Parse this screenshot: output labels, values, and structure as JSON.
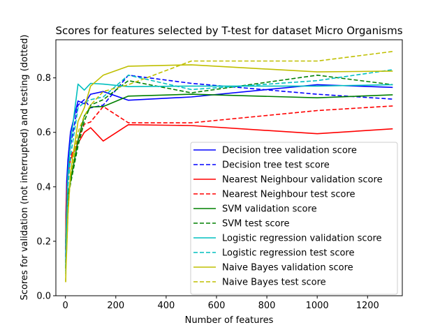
{
  "chart_data": {
    "type": "line",
    "title": "Scores for features selected by T-test for dataset Micro Organisms",
    "xlabel": "Number of features",
    "ylabel": "Scores for validation (not interrupted) and testing (dotted)",
    "xlim": [
      -38,
      1338
    ],
    "ylim": [
      0.0,
      0.94
    ],
    "xticks": [
      0,
      200,
      400,
      600,
      800,
      1000,
      1200
    ],
    "yticks": [
      0.0,
      0.2,
      0.4,
      0.6,
      0.8
    ],
    "ytick_labels": [
      "0.0",
      "0.2",
      "0.4",
      "0.6",
      "0.8"
    ],
    "grid": false,
    "legend_position": "lower-right",
    "x": [
      1,
      2,
      5,
      10,
      20,
      50,
      75,
      100,
      150,
      250,
      500,
      1000,
      1300
    ],
    "series": [
      {
        "name": "Decision tree validation score",
        "color": "#0000ff",
        "style": "solid",
        "values": [
          0.14,
          0.3,
          0.42,
          0.5,
          0.6,
          0.715,
          0.705,
          0.74,
          0.75,
          0.718,
          0.73,
          0.775,
          0.765
        ]
      },
      {
        "name": "Decision tree test score",
        "color": "#0000ff",
        "style": "dashed",
        "values": [
          0.12,
          0.27,
          0.38,
          0.47,
          0.55,
          0.7,
          0.72,
          0.69,
          0.7,
          0.81,
          0.78,
          0.74,
          0.722
        ]
      },
      {
        "name": "Nearest Neighbour validation score",
        "color": "#ff0000",
        "style": "solid",
        "values": [
          0.17,
          0.27,
          0.37,
          0.44,
          0.5,
          0.56,
          0.6,
          0.617,
          0.568,
          0.628,
          0.625,
          0.595,
          0.613
        ]
      },
      {
        "name": "Nearest Neighbour test score",
        "color": "#ff0000",
        "style": "dashed",
        "values": [
          0.17,
          0.28,
          0.38,
          0.45,
          0.51,
          0.57,
          0.63,
          0.638,
          0.695,
          0.635,
          0.635,
          0.68,
          0.697
        ]
      },
      {
        "name": "SVM validation score",
        "color": "#008000",
        "style": "solid",
        "values": [
          0.1,
          0.2,
          0.3,
          0.37,
          0.42,
          0.57,
          0.66,
          0.693,
          0.695,
          0.733,
          0.74,
          0.727,
          0.738
        ]
      },
      {
        "name": "SVM test score",
        "color": "#008000",
        "style": "dashed",
        "values": [
          0.1,
          0.19,
          0.29,
          0.36,
          0.41,
          0.55,
          0.64,
          0.7,
          0.72,
          0.79,
          0.745,
          0.81,
          0.775
        ]
      },
      {
        "name": "Logistic regression validation score",
        "color": "#00bfbf",
        "style": "solid",
        "values": [
          0.09,
          0.18,
          0.3,
          0.45,
          0.56,
          0.777,
          0.755,
          0.78,
          0.777,
          0.768,
          0.77,
          0.77,
          0.775
        ]
      },
      {
        "name": "Logistic regression test score",
        "color": "#00bfbf",
        "style": "dashed",
        "values": [
          0.08,
          0.15,
          0.27,
          0.4,
          0.51,
          0.69,
          0.71,
          0.72,
          0.73,
          0.81,
          0.757,
          0.79,
          0.83
        ]
      },
      {
        "name": "Naive Bayes validation score",
        "color": "#bfbf00",
        "style": "solid",
        "values": [
          0.05,
          0.1,
          0.17,
          0.3,
          0.45,
          0.64,
          0.69,
          0.77,
          0.81,
          0.843,
          0.848,
          0.822,
          0.825
        ]
      },
      {
        "name": "Naive Bayes test score",
        "color": "#bfbf00",
        "style": "dashed",
        "values": [
          0.05,
          0.12,
          0.18,
          0.3,
          0.44,
          0.6,
          0.66,
          0.7,
          0.75,
          0.775,
          0.862,
          0.862,
          0.897
        ]
      }
    ]
  }
}
